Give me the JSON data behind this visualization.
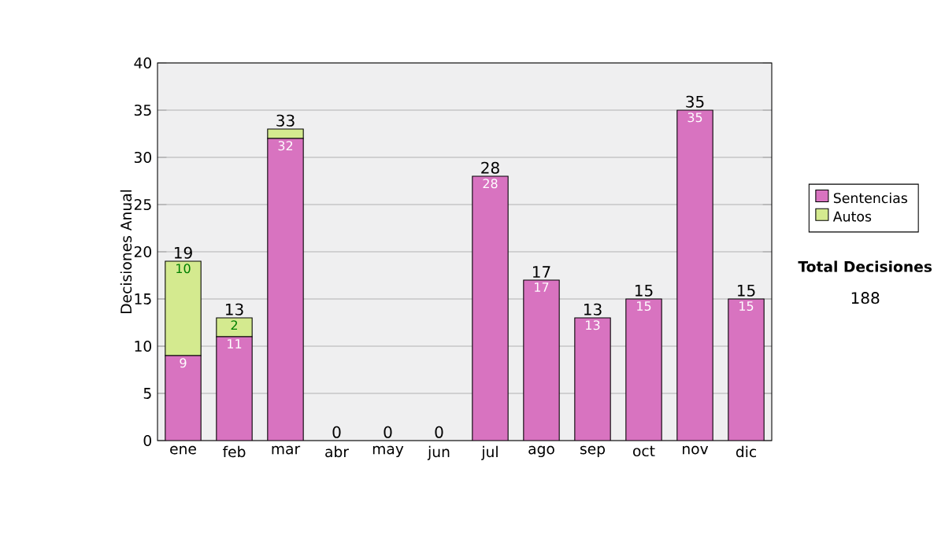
{
  "chart_data": {
    "type": "bar",
    "stacked": true,
    "ylabel": "Decisiones Anual",
    "categories": [
      "ene",
      "feb",
      "mar",
      "abr",
      "may",
      "jun",
      "jul",
      "ago",
      "sep",
      "oct",
      "nov",
      "dic"
    ],
    "series": [
      {
        "name": "Sentencias",
        "color": "#d873c0",
        "values": [
          9,
          11,
          32,
          0,
          0,
          0,
          28,
          17,
          13,
          15,
          35,
          15
        ],
        "value_labels": [
          "9",
          "11",
          "32",
          null,
          null,
          null,
          "28",
          "17",
          "13",
          "15",
          "35",
          "15"
        ]
      },
      {
        "name": "Autos",
        "color": "#d4ea8f",
        "values": [
          10,
          2,
          1,
          0,
          0,
          0,
          0,
          0,
          0,
          0,
          0,
          0
        ],
        "value_labels": [
          "10",
          "2",
          null,
          null,
          null,
          null,
          null,
          null,
          null,
          null,
          null,
          null
        ]
      }
    ],
    "totals": [
      "19",
      "13",
      "33",
      "0",
      "0",
      "0",
      "28",
      "17",
      "13",
      "15",
      "35",
      "15"
    ],
    "ylim": [
      0,
      40
    ],
    "yticks": [
      0,
      5,
      10,
      15,
      20,
      25,
      30,
      35,
      40
    ],
    "grid": "y",
    "legend": "right",
    "annotations": [
      "Total Decisiones",
      "188"
    ]
  }
}
